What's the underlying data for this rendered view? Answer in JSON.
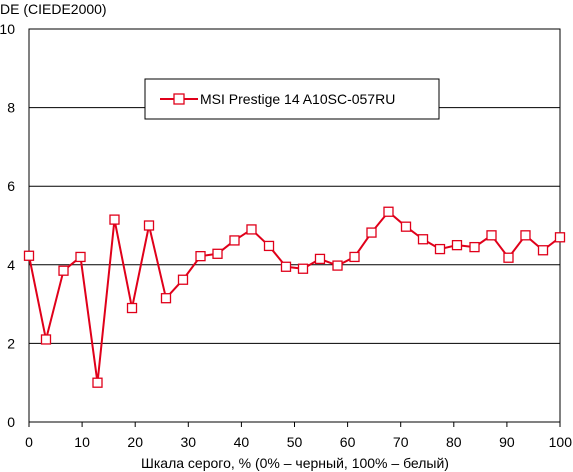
{
  "chart_data": {
    "type": "line",
    "ylabel": "DE (CIEDE2000)",
    "xlabel": "Шкала серого, % (0% – черный, 100% – белый)",
    "xlim": [
      0,
      100
    ],
    "ylim": [
      0,
      10
    ],
    "x_ticks": [
      "0",
      "10",
      "20",
      "30",
      "40",
      "50",
      "60",
      "70",
      "80",
      "90",
      "100"
    ],
    "y_ticks": [
      "0",
      "2",
      "4",
      "6",
      "8",
      "10"
    ],
    "grid": "horizontal",
    "legend_position": "top-center",
    "series": [
      {
        "name": "MSI Prestige 14 A10SC-057RU",
        "color": "#e0001a",
        "marker": "square",
        "x": [
          0,
          3.2,
          6.5,
          9.7,
          12.9,
          16.1,
          19.4,
          22.6,
          25.8,
          29,
          32.3,
          35.5,
          38.7,
          41.9,
          45.2,
          48.4,
          51.6,
          54.8,
          58.1,
          61.3,
          64.5,
          67.7,
          71,
          74.2,
          77.4,
          80.6,
          83.9,
          87.1,
          90.3,
          93.5,
          96.8,
          100
        ],
        "y": [
          4.23,
          2.1,
          3.85,
          4.2,
          1.0,
          5.15,
          2.9,
          5.0,
          3.15,
          3.62,
          4.22,
          4.28,
          4.62,
          4.9,
          4.48,
          3.95,
          3.9,
          4.15,
          3.98,
          4.2,
          4.82,
          5.35,
          4.97,
          4.65,
          4.4,
          4.5,
          4.45,
          4.75,
          4.18,
          4.75,
          4.37,
          4.7
        ]
      }
    ]
  }
}
